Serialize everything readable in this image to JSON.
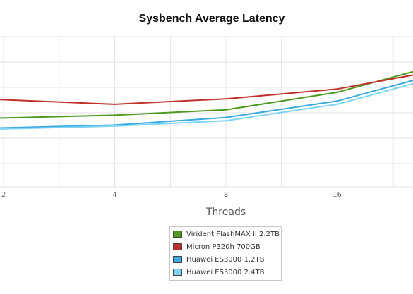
{
  "chart_data": {
    "type": "line",
    "title": "Sysbench Average Latency",
    "xlabel": "Threads",
    "ylabel": "",
    "categories": [
      "2",
      "4",
      "8",
      "16"
    ],
    "x_scale": "log2",
    "grid": true,
    "legend_position": "bottom-center",
    "series": [
      {
        "name": "Virident FlashMAX II 2.2TB",
        "color": "#4d9a1f",
        "points": [
          [
            1.75,
            1.8
          ],
          [
            4,
            2.1
          ],
          [
            8,
            2.6
          ],
          [
            16,
            4.2
          ],
          [
            30,
            6.7
          ]
        ]
      },
      {
        "name": "Micron P320h 700GB",
        "color": "#c0302a",
        "points": [
          [
            1.75,
            3.6
          ],
          [
            4,
            3.1
          ],
          [
            8,
            3.6
          ],
          [
            16,
            4.5
          ],
          [
            30,
            6.2
          ]
        ]
      },
      {
        "name": "Huawei ES3000 1.2TB",
        "color": "#3aa9e3",
        "points": [
          [
            1.75,
            0.9
          ],
          [
            4,
            1.2
          ],
          [
            8,
            1.9
          ],
          [
            16,
            3.4
          ],
          [
            30,
            5.9
          ]
        ]
      },
      {
        "name": "Huawei ES3000 2.4TB",
        "color": "#7ed4f4",
        "points": [
          [
            1.75,
            0.8
          ],
          [
            4,
            1.1
          ],
          [
            8,
            1.6
          ],
          [
            16,
            3.1
          ],
          [
            30,
            5.6
          ]
        ]
      }
    ]
  }
}
